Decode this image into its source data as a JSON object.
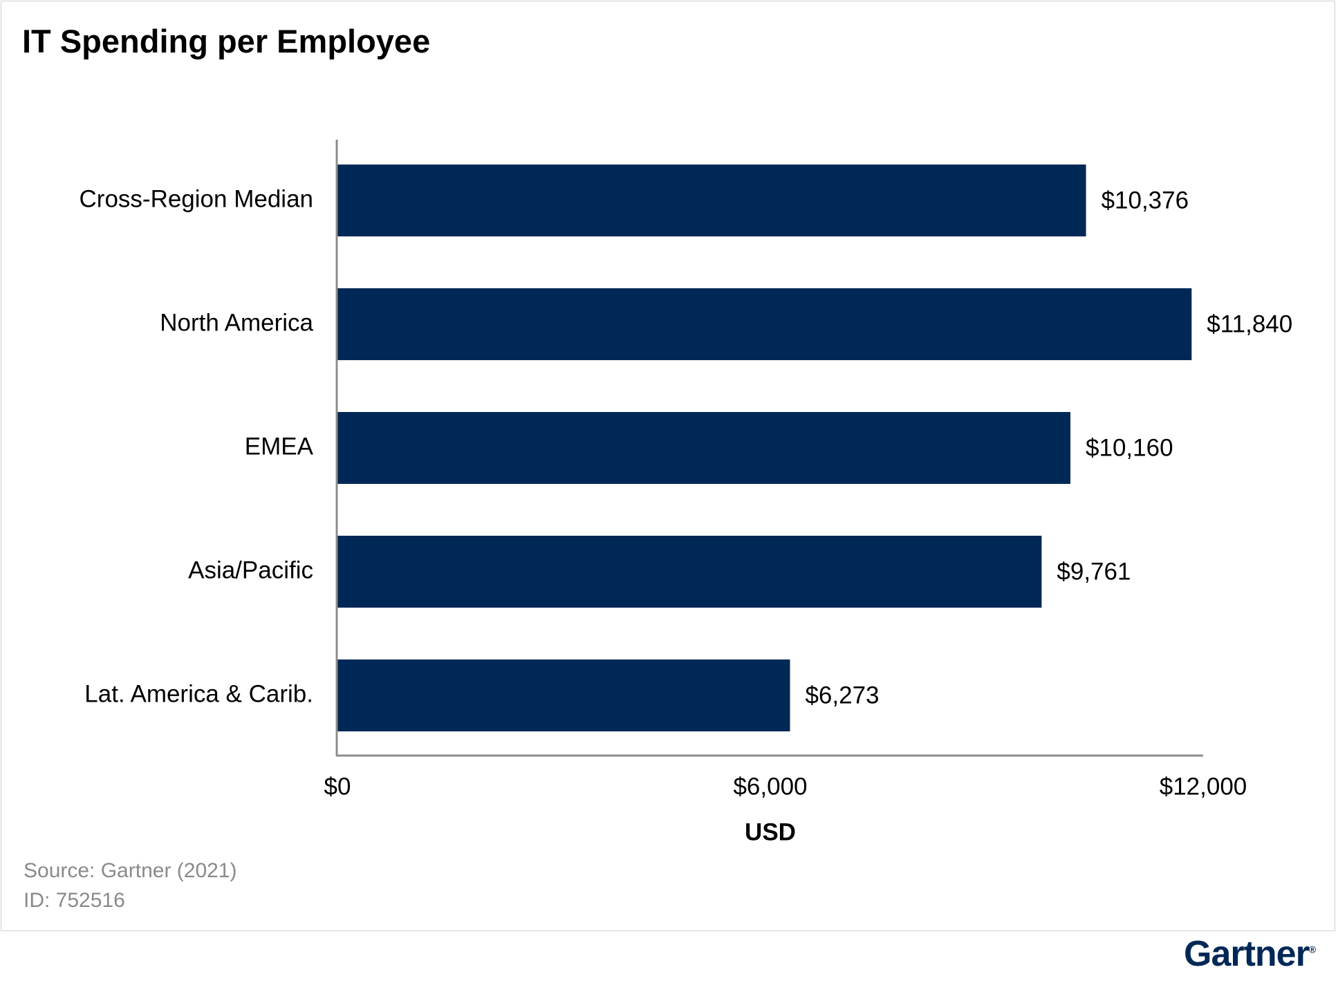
{
  "footer": {
    "source": "Source: Gartner (2021)",
    "id": "ID: 752516"
  },
  "brand": {
    "logo_text": "Gartner",
    "color": "#002856"
  },
  "chart_data": {
    "type": "bar",
    "orientation": "horizontal",
    "title": "IT Spending per Employee",
    "xlabel": "USD",
    "ylabel": "",
    "categories": [
      "Cross-Region Median",
      "North America",
      "EMEA",
      "Asia/Pacific",
      "Lat. America & Carib."
    ],
    "values": [
      10376,
      11840,
      10160,
      9761,
      6273
    ],
    "value_labels": [
      "$10,376",
      "$11,840",
      "$10,160",
      "$9,761",
      "$6,273"
    ],
    "xlim": [
      0,
      12000
    ],
    "x_ticks": [
      0,
      6000,
      12000
    ],
    "x_tick_labels": [
      "$0",
      "$6,000",
      "$12,000"
    ],
    "bar_color": "#002856",
    "grid": false,
    "legend": "none"
  }
}
